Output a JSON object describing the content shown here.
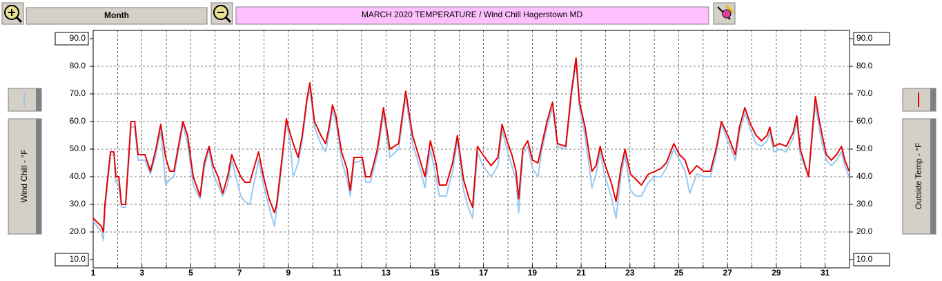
{
  "controls": {
    "period": "Month"
  },
  "chart_data": {
    "type": "line",
    "title": "MARCH  2020   TEMPERATURE / Wind Chill Hagerstown MD",
    "xlim": [
      1,
      32
    ],
    "xticks": [
      1,
      3,
      5,
      7,
      9,
      11,
      13,
      15,
      17,
      19,
      21,
      23,
      25,
      27,
      29,
      31
    ],
    "xminorticks": [
      2,
      4,
      6,
      8,
      10,
      12,
      14,
      16,
      18,
      20,
      22,
      24,
      26,
      28,
      30,
      32
    ],
    "ylim": [
      7,
      93
    ],
    "yticks": [
      {
        "value": 10,
        "label": "10.0"
      },
      {
        "value": 20,
        "label": "20.0"
      },
      {
        "value": 30,
        "label": "30.0"
      },
      {
        "value": 40,
        "label": "40.0"
      },
      {
        "value": 50,
        "label": "50.0"
      },
      {
        "value": 60,
        "label": "60.0"
      },
      {
        "value": 70,
        "label": "70.0"
      },
      {
        "value": 80,
        "label": "80.0"
      },
      {
        "value": 90,
        "label": "90.0"
      }
    ],
    "y2lim": [
      7,
      93
    ],
    "y2ticks": [
      {
        "value": 10,
        "label": "10.0"
      },
      {
        "value": 20,
        "label": "20.0"
      },
      {
        "value": 30,
        "label": "30.0"
      },
      {
        "value": 40,
        "label": "40.0"
      },
      {
        "value": 50,
        "label": "50.0"
      },
      {
        "value": 60,
        "label": "60.0"
      },
      {
        "value": 70,
        "label": "70.0"
      },
      {
        "value": 80,
        "label": "80.0"
      },
      {
        "value": 90,
        "label": "90.0"
      }
    ],
    "grid": true,
    "x": [
      1.0,
      1.34,
      1.42,
      1.48,
      1.71,
      1.85,
      1.93,
      2.05,
      2.16,
      2.33,
      2.55,
      2.7,
      2.84,
      3.12,
      3.35,
      3.57,
      3.77,
      3.97,
      4.14,
      4.31,
      4.68,
      4.87,
      5.1,
      5.38,
      5.55,
      5.75,
      5.92,
      6.12,
      6.31,
      6.51,
      6.68,
      6.85,
      7.05,
      7.22,
      7.42,
      7.78,
      7.98,
      8.21,
      8.43,
      8.52,
      8.72,
      8.92,
      9.06,
      9.2,
      9.4,
      9.57,
      9.76,
      9.88,
      10.07,
      10.33,
      10.53,
      10.67,
      10.81,
      10.95,
      11.18,
      11.4,
      11.54,
      11.69,
      12.03,
      12.17,
      12.36,
      12.65,
      12.9,
      13.16,
      13.52,
      13.81,
      14.09,
      14.43,
      14.6,
      14.82,
      15.05,
      15.19,
      15.47,
      15.73,
      15.93,
      16.18,
      16.41,
      16.55,
      16.75,
      16.97,
      17.31,
      17.59,
      17.76,
      17.96,
      18.16,
      18.33,
      18.44,
      18.61,
      18.81,
      19.01,
      19.23,
      19.4,
      19.6,
      19.83,
      20.03,
      20.37,
      20.59,
      20.79,
      20.93,
      21.16,
      21.44,
      21.61,
      21.78,
      21.95,
      22.23,
      22.43,
      22.63,
      22.8,
      23.02,
      23.25,
      23.47,
      23.76,
      24.04,
      24.27,
      24.49,
      24.8,
      25.03,
      25.26,
      25.45,
      25.74,
      26.02,
      26.3,
      26.53,
      26.75,
      27.01,
      27.32,
      27.49,
      27.71,
      27.94,
      28.17,
      28.39,
      28.62,
      28.73,
      28.9,
      29.13,
      29.41,
      29.69,
      29.84,
      29.98,
      30.15,
      30.32,
      30.49,
      30.6,
      30.77,
      30.88,
      31.05,
      31.25,
      31.47,
      31.67,
      31.81,
      31.98
    ],
    "series": [
      {
        "name": "Wind Chill - °F",
        "color": "#99c9f2",
        "axis": "y",
        "values": [
          24,
          20,
          17,
          28,
          48,
          48,
          38,
          37,
          29,
          29,
          58,
          58,
          46,
          46,
          41,
          48,
          57,
          37,
          39,
          40,
          59,
          52,
          37,
          32,
          43,
          50,
          41,
          37,
          33,
          37,
          46,
          40,
          33,
          31,
          30,
          46,
          37,
          29,
          22,
          28,
          43,
          60,
          53,
          40,
          45,
          53,
          67,
          72,
          58,
          52,
          49,
          56,
          64,
          60,
          46,
          39,
          33,
          45,
          46,
          38,
          38,
          48,
          63,
          47,
          50,
          69,
          52,
          42,
          36,
          50,
          40,
          33,
          33,
          42,
          53,
          35,
          28,
          25,
          49,
          44,
          40,
          44,
          57,
          50,
          44,
          39,
          27,
          48,
          51,
          43,
          40,
          50,
          58,
          65,
          51,
          50,
          68,
          82,
          65,
          55,
          36,
          41,
          49,
          41,
          33,
          25,
          40,
          48,
          35,
          33,
          33,
          38,
          40,
          40,
          43,
          50,
          46,
          42,
          34,
          41,
          40,
          40,
          48,
          59,
          53,
          46,
          56,
          63,
          57,
          52,
          51,
          53,
          56,
          49,
          50,
          49,
          54,
          60,
          48,
          44,
          40,
          56,
          66,
          57,
          52,
          46,
          44,
          46,
          49,
          44,
          40
        ]
      },
      {
        "name": "Outside Temp - °F",
        "color": "#e80000",
        "axis": "y2",
        "values": [
          25,
          22,
          20,
          30,
          49,
          49,
          40,
          40,
          30,
          30,
          60,
          60,
          48,
          48,
          42,
          50,
          59,
          47,
          42,
          42,
          60,
          55,
          40,
          33,
          45,
          51,
          44,
          40,
          34,
          40,
          48,
          44,
          40,
          38,
          38,
          49,
          40,
          32,
          27,
          30,
          45,
          61,
          56,
          52,
          47,
          55,
          68,
          74,
          60,
          55,
          52,
          58,
          66,
          62,
          49,
          43,
          35,
          47,
          47,
          40,
          40,
          50,
          65,
          50,
          52,
          71,
          55,
          45,
          40,
          53,
          45,
          37,
          37,
          45,
          55,
          39,
          32,
          29,
          51,
          48,
          44,
          47,
          59,
          53,
          48,
          42,
          32,
          50,
          53,
          46,
          45,
          52,
          60,
          67,
          52,
          51,
          70,
          83,
          67,
          58,
          42,
          44,
          51,
          45,
          38,
          31,
          43,
          50,
          41,
          39,
          37,
          41,
          42,
          43,
          45,
          52,
          48,
          46,
          41,
          44,
          42,
          42,
          50,
          60,
          55,
          48,
          58,
          65,
          59,
          55,
          53,
          55,
          58,
          51,
          52,
          51,
          56,
          62,
          50,
          45,
          40,
          58,
          69,
          60,
          55,
          48,
          46,
          48,
          51,
          46,
          42
        ]
      }
    ]
  }
}
